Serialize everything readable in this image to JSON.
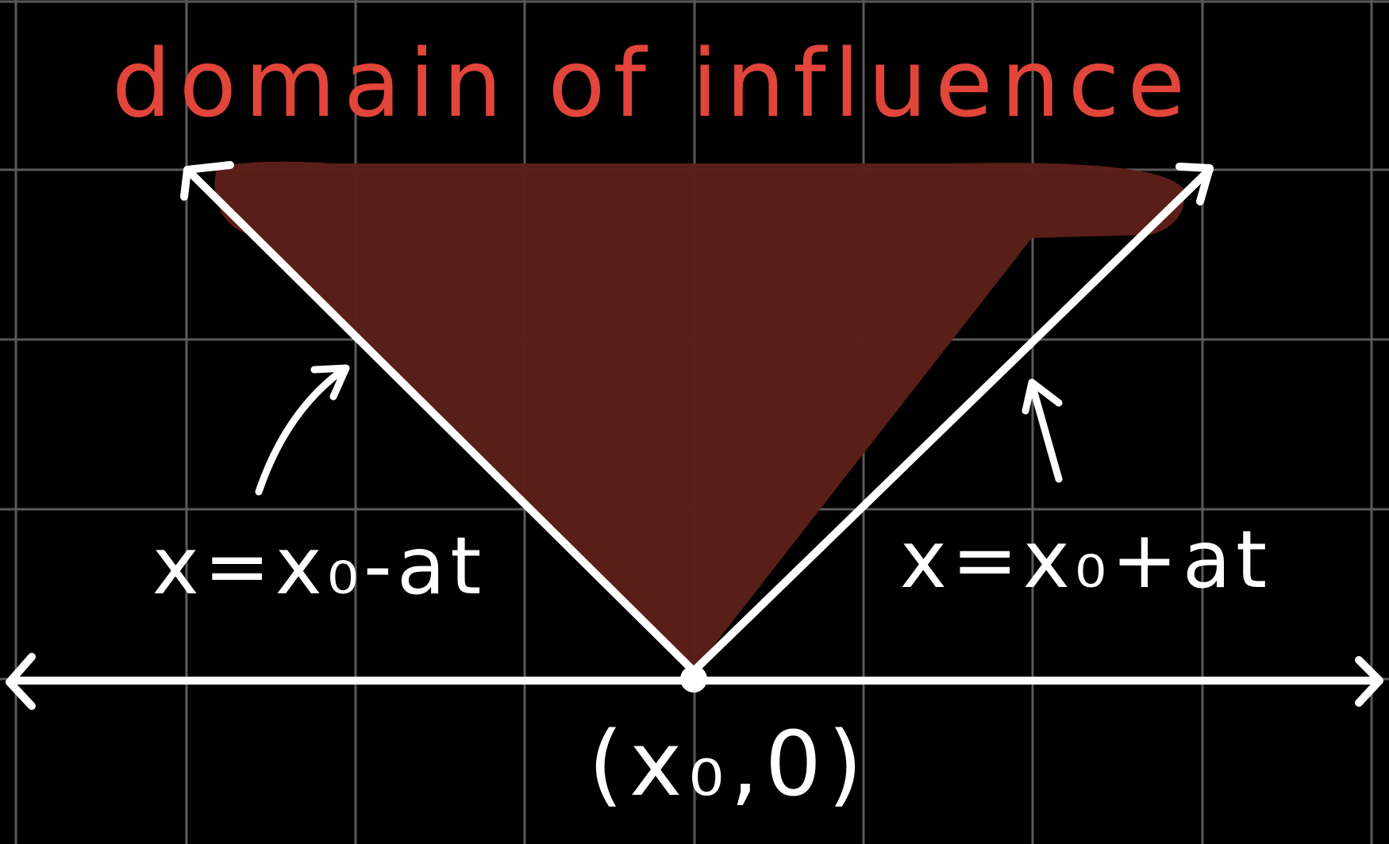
{
  "title": "domain of influence",
  "labels": {
    "left_line": "x=x₀-at",
    "right_line": "x=x₀+at",
    "origin": "(x₀,0)"
  },
  "colors": {
    "background": "#000000",
    "grid": "#5a5a5a",
    "region_fill": "#5c1f18",
    "title": "#e2453a",
    "lines": "#ffffff"
  }
}
